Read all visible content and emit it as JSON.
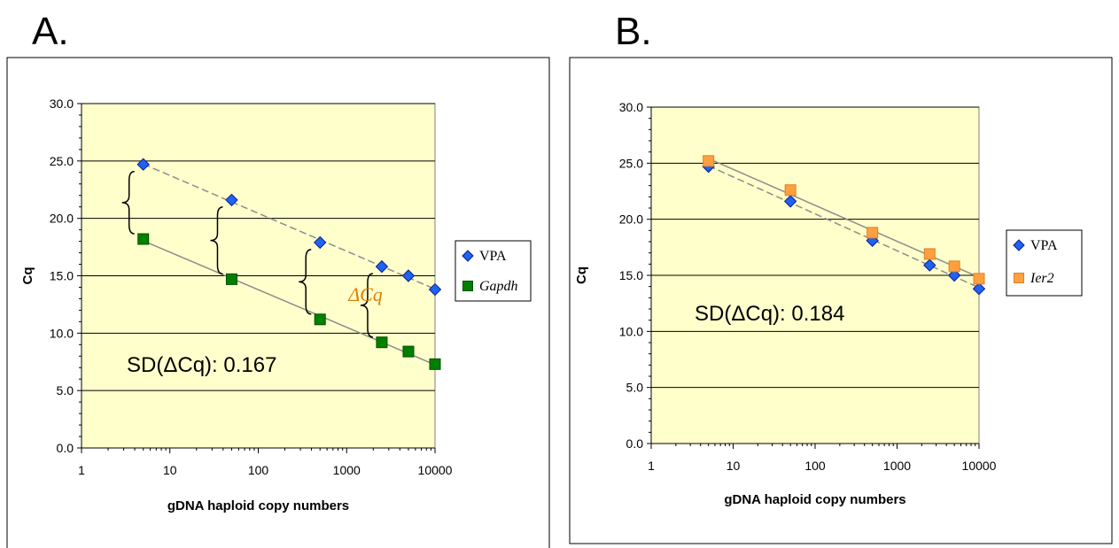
{
  "figure": {
    "panels": [
      {
        "letter": "A."
      },
      {
        "letter": "B."
      }
    ]
  },
  "chart_data": [
    {
      "type": "scatter",
      "panel": "A.",
      "xscale": "log",
      "xlim": [
        1,
        10000
      ],
      "ylim": [
        0,
        30
      ],
      "xticks": [
        "1",
        "10",
        "100",
        "1000",
        "10000"
      ],
      "yticks": [
        "0.0",
        "5.0",
        "10.0",
        "15.0",
        "20.0",
        "25.0",
        "30.0"
      ],
      "xlabel": "gDNA haploid copy numbers",
      "ylabel": "Cq",
      "plot_background": "#ffffcc",
      "grid": "horizontal",
      "legend_position": "right",
      "annotation": "SD(ΔCq): 0.167",
      "delta_label": "ΔCq",
      "delta_label_color": "#e07f00",
      "series": [
        {
          "name": "VPA",
          "italic": false,
          "marker": "diamond",
          "color": "#1f63f2",
          "edge": "#0a1e8f",
          "trend": "dashed",
          "x": [
            5,
            50,
            500,
            2500,
            5000,
            10000
          ],
          "y": [
            24.7,
            21.6,
            17.9,
            15.8,
            15.0,
            13.8
          ]
        },
        {
          "name": "Gapdh",
          "italic": true,
          "marker": "square",
          "color": "#008000",
          "edge": "#004d00",
          "trend": "solid",
          "x": [
            5,
            50,
            500,
            2500,
            5000,
            10000
          ],
          "y": [
            18.2,
            14.7,
            11.2,
            9.2,
            8.4,
            7.3
          ]
        }
      ]
    },
    {
      "type": "scatter",
      "panel": "B.",
      "xscale": "log",
      "xlim": [
        1,
        10000
      ],
      "ylim": [
        0,
        30
      ],
      "xticks": [
        "1",
        "10",
        "100",
        "1000",
        "10000"
      ],
      "yticks": [
        "0.0",
        "5.0",
        "10.0",
        "15.0",
        "20.0",
        "25.0",
        "30.0"
      ],
      "xlabel": "gDNA haploid copy numbers",
      "ylabel": "Cq",
      "plot_background": "#ffffcc",
      "grid": "horizontal",
      "legend_position": "right",
      "annotation": "SD(ΔCq): 0.184",
      "series": [
        {
          "name": "VPA",
          "italic": false,
          "marker": "diamond",
          "color": "#1f63f2",
          "edge": "#0a1e8f",
          "trend": "dashed",
          "x": [
            5,
            50,
            500,
            2500,
            5000,
            10000
          ],
          "y": [
            24.7,
            21.6,
            18.1,
            15.9,
            15.0,
            13.8
          ]
        },
        {
          "name": "Ier2",
          "italic": true,
          "marker": "square",
          "color": "#ffa040",
          "edge": "#e08020",
          "trend": "solid",
          "x": [
            5,
            50,
            500,
            2500,
            5000,
            10000
          ],
          "y": [
            25.2,
            22.6,
            18.8,
            16.9,
            15.8,
            14.7
          ]
        }
      ]
    }
  ]
}
